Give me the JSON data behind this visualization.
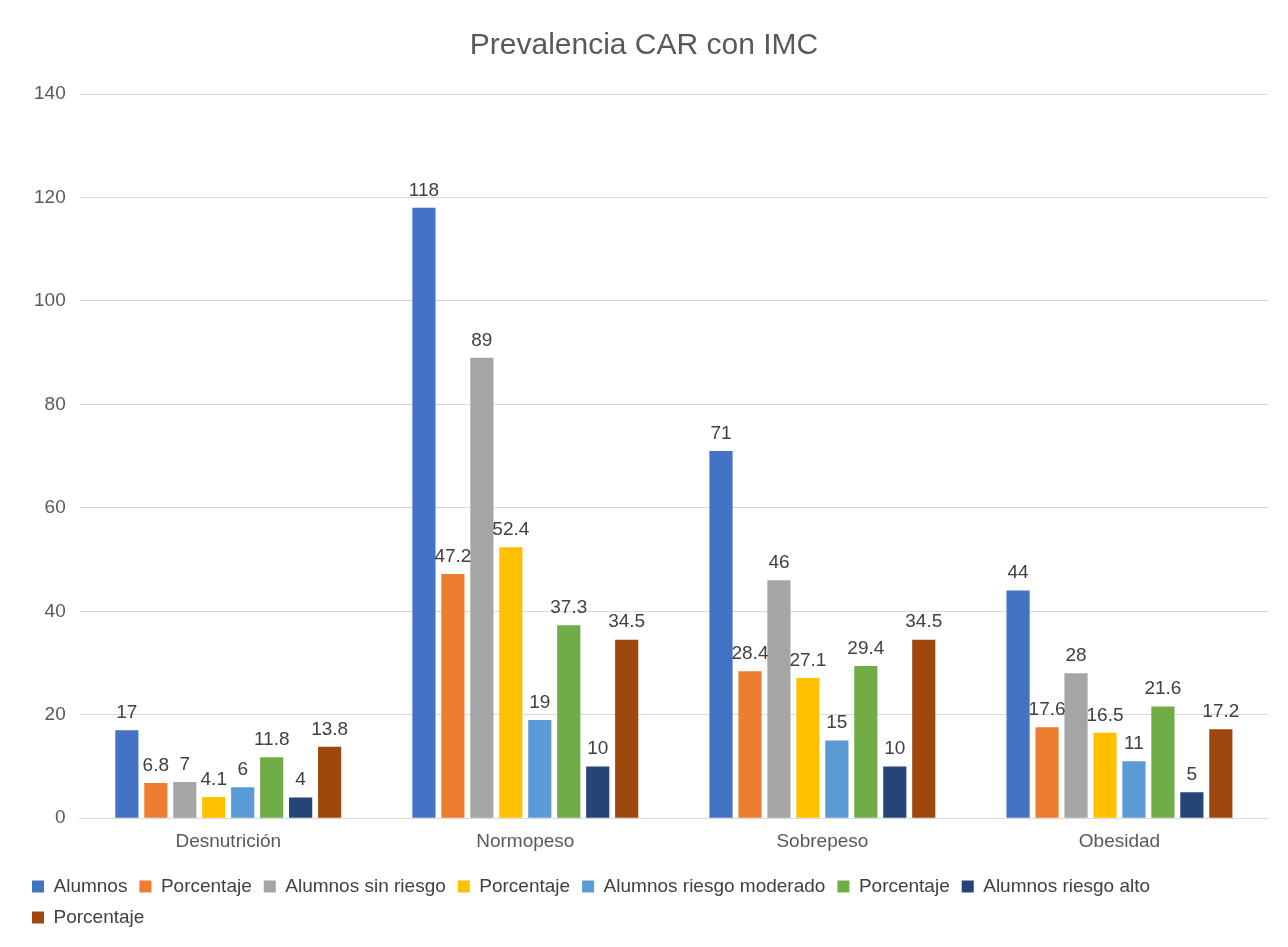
{
  "chart_data": {
    "type": "bar",
    "title": "Prevalencia CAR con IMC",
    "categories": [
      "Desnutrición",
      "Normopeso",
      "Sobrepeso",
      "Obesidad"
    ],
    "series": [
      {
        "name": "Alumnos",
        "color": "#4472c4",
        "values": [
          17,
          118,
          71,
          44
        ]
      },
      {
        "name": "Porcentaje",
        "color": "#ed7d31",
        "values": [
          6.8,
          47.2,
          28.4,
          17.6
        ]
      },
      {
        "name": "Alumnos sin riesgo",
        "color": "#a5a5a5",
        "values": [
          7,
          89,
          46,
          28
        ]
      },
      {
        "name": "Porcentaje",
        "color": "#ffc000",
        "values": [
          4.1,
          52.4,
          27.1,
          16.5
        ]
      },
      {
        "name": "Alumnos riesgo moderado",
        "color": "#5b9bd5",
        "values": [
          6,
          19,
          15,
          11
        ]
      },
      {
        "name": "Porcentaje",
        "color": "#70ad47",
        "values": [
          11.8,
          37.3,
          29.4,
          21.6
        ]
      },
      {
        "name": "Alumnos riesgo alto",
        "color": "#264478",
        "values": [
          4,
          10,
          10,
          5
        ]
      },
      {
        "name": "Porcentaje",
        "color": "#9e480e",
        "values": [
          13.8,
          34.5,
          34.5,
          17.2
        ]
      }
    ],
    "ylim": [
      0,
      140
    ],
    "yticks": [
      0,
      20,
      40,
      60,
      80,
      100,
      120,
      140
    ],
    "grid": "y",
    "legend": "bottom",
    "data_labels": true
  }
}
